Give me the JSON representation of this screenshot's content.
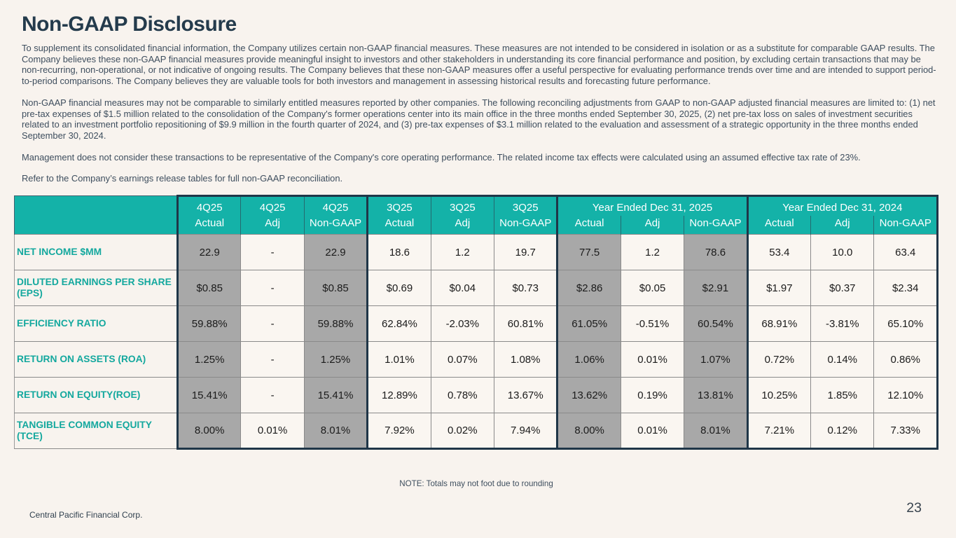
{
  "slide": {
    "title": "Non-GAAP Disclosure",
    "paragraphs": [
      "To supplement its consolidated financial information, the Company utilizes certain non-GAAP financial measures. These measures are not intended to be considered in isolation or as a substitute for comparable GAAP results. The Company believes these non-GAAP financial measures provide meaningful insight to investors and other stakeholders in understanding its core financial performance and position, by excluding certain transactions that may be non-recurring, non-operational, or not indicative of ongoing results. The Company believes that these non-GAAP measures offer a useful perspective for evaluating performance trends over time and are intended to support period-to-period comparisons. The Company believes they are valuable tools for both investors and management in assessing historical results and forecasting future performance.",
      "Non-GAAP financial measures may not be comparable to similarly entitled measures reported by other companies. The following reconciling adjustments from GAAP to non-GAAP adjusted financial measures are limited to: (1) net pre-tax expenses of $1.5 million related to the consolidation of the Company's former operations center into its main office in the three months ended September 30, 2025, (2) net pre-tax loss on sales of investment securities related to an investment portfolio repositioning of $9.9 million in the fourth quarter of 2024, and (3) pre-tax expenses of $3.1 million related to the evaluation and assessment of a strategic opportunity in the three months ended September 30, 2024.",
      "Management does not consider these transactions to be representative of the Company's core operating performance. The related income tax effects were calculated using an assumed effective tax rate of 23%.",
      "Refer to the Company’s earnings release tables for full non-GAAP reconciliation."
    ],
    "note": "NOTE: Totals may not foot due to rounding",
    "footer": "Central Pacific Financial Corp.",
    "page_number": "23"
  },
  "colors": {
    "teal_accent": "#14B2A8",
    "navy_border": "#1F3648",
    "shaded_cell_gray": "#A8A8A8",
    "background": "#F8F3EE"
  },
  "table": {
    "header_groups": [
      {
        "title": null,
        "cells": [
          "4Q25",
          "4Q25",
          "4Q25"
        ],
        "subs": [
          "Actual",
          "Adj",
          "Non-GAAP"
        ]
      },
      {
        "title": null,
        "cells": [
          "3Q25",
          "3Q25",
          "3Q25"
        ],
        "subs": [
          "Actual",
          "Adj",
          "Non-GAAP"
        ]
      },
      {
        "title": "Year Ended Dec 31, 2025",
        "subs": [
          "Actual",
          "Adj",
          "Non-GAAP"
        ]
      },
      {
        "title": "Year Ended Dec 31, 2024",
        "subs": [
          "Actual",
          "Adj",
          "Non-GAAP"
        ]
      }
    ],
    "shaded_columns": [
      0,
      2,
      6,
      8
    ],
    "rows": [
      {
        "label": "NET INCOME $MM",
        "values": [
          "22.9",
          "-",
          "22.9",
          "18.6",
          "1.2",
          "19.7",
          "77.5",
          "1.2",
          "78.6",
          "53.4",
          "10.0",
          "63.4"
        ]
      },
      {
        "label": "DILUTED EARNINGS PER SHARE (EPS)",
        "values": [
          "$0.85",
          "-",
          "$0.85",
          "$0.69",
          "$0.04",
          "$0.73",
          "$2.86",
          "$0.05",
          "$2.91",
          "$1.97",
          "$0.37",
          "$2.34"
        ]
      },
      {
        "label": "EFFICIENCY RATIO",
        "values": [
          "59.88%",
          "-",
          "59.88%",
          "62.84%",
          "-2.03%",
          "60.81%",
          "61.05%",
          "-0.51%",
          "60.54%",
          "68.91%",
          "-3.81%",
          "65.10%"
        ]
      },
      {
        "label": "RETURN ON ASSETS (ROA)",
        "values": [
          "1.25%",
          "-",
          "1.25%",
          "1.01%",
          "0.07%",
          "1.08%",
          "1.06%",
          "0.01%",
          "1.07%",
          "0.72%",
          "0.14%",
          "0.86%"
        ]
      },
      {
        "label": "RETURN ON EQUITY(ROE)",
        "values": [
          "15.41%",
          "-",
          "15.41%",
          "12.89%",
          "0.78%",
          "13.67%",
          "13.62%",
          "0.19%",
          "13.81%",
          "10.25%",
          "1.85%",
          "12.10%"
        ]
      },
      {
        "label": "TANGIBLE COMMON EQUITY (TCE)",
        "values": [
          "8.00%",
          "0.01%",
          "8.01%",
          "7.92%",
          "0.02%",
          "7.94%",
          "8.00%",
          "0.01%",
          "8.01%",
          "7.21%",
          "0.12%",
          "7.33%"
        ]
      }
    ]
  }
}
